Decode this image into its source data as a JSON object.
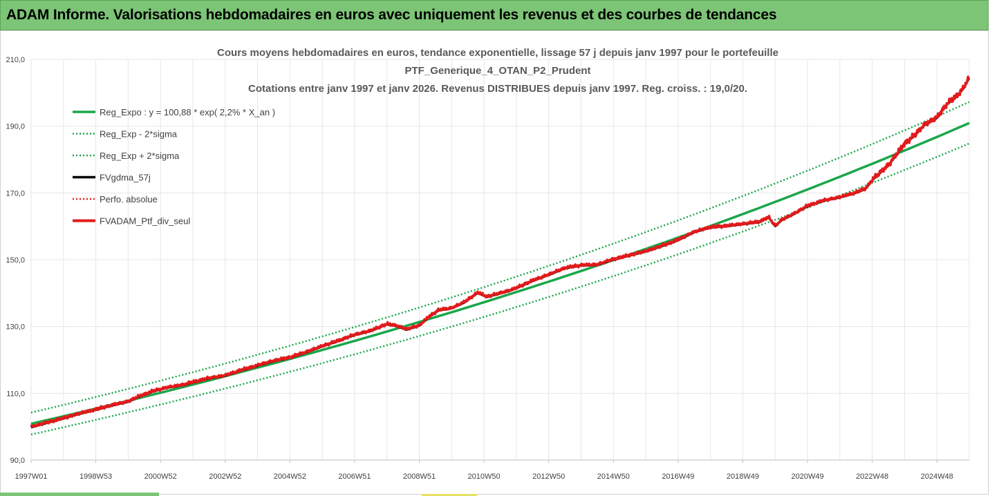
{
  "banner": {
    "title": "ADAM Informe. Valorisations hebdomadaires en euros avec uniquement les revenus et des courbes de tendances"
  },
  "colors": {
    "banner": "#7cc576",
    "trend": "#1aa64a",
    "fvgdma": "#000000",
    "perf": "#e31a1c",
    "adam": "#e31a1c",
    "grid": "#e6e6e6"
  },
  "chart_data": {
    "type": "line",
    "title_lines": [
      "Cours moyens hebdomadaires  en euros, tendance exponentielle, lissage 57 j depuis janv 1997 pour le portefeuille",
      "PTF_Generique_4_OTAN_P2_Prudent",
      "Cotations entre janv 1997 et janv 2026. Revenus DISTRIBUES depuis janv 1997. Reg. croiss. : 19,0/20."
    ],
    "x_range": [
      1997.0,
      2026.0
    ],
    "ylim": [
      90,
      210
    ],
    "y_ticks": [
      {
        "value": 90,
        "label": "90,0"
      },
      {
        "value": 110,
        "label": "110,0"
      },
      {
        "value": 130,
        "label": "130,0"
      },
      {
        "value": 150,
        "label": "150,0"
      },
      {
        "value": 170,
        "label": "170,0"
      },
      {
        "value": 190,
        "label": "190,0"
      },
      {
        "value": 210,
        "label": "210,0"
      }
    ],
    "x_ticks": [
      {
        "t": 1997.0,
        "label": "1997W01"
      },
      {
        "t": 1999.0,
        "label": "1998W53"
      },
      {
        "t": 2001.0,
        "label": "2000W52"
      },
      {
        "t": 2003.0,
        "label": "2002W52"
      },
      {
        "t": 2005.0,
        "label": "2004W52"
      },
      {
        "t": 2007.0,
        "label": "2006W51"
      },
      {
        "t": 2009.0,
        "label": "2008W51"
      },
      {
        "t": 2011.0,
        "label": "2010W50"
      },
      {
        "t": 2013.0,
        "label": "2012W50"
      },
      {
        "t": 2015.0,
        "label": "2014W50"
      },
      {
        "t": 2017.0,
        "label": "2016W49"
      },
      {
        "t": 2019.0,
        "label": "2018W49"
      },
      {
        "t": 2021.0,
        "label": "2020W49"
      },
      {
        "t": 2023.0,
        "label": "2022W48"
      },
      {
        "t": 2025.0,
        "label": "2024W48"
      }
    ],
    "grid": true,
    "legend_position": "top-left",
    "trend": {
      "a": 100.88,
      "rate": 0.022,
      "lower_factor": 0.968,
      "upper_factor": 1.033
    },
    "legend": [
      {
        "label": "Reg_Expo : y = 100,88 * exp( 2,2% *  X_an )",
        "color": "#1aa64a",
        "style": "solid"
      },
      {
        "label": "Reg_Exp - 2*sigma",
        "color": "#1aa64a",
        "style": "dotted"
      },
      {
        "label": "Reg_Exp + 2*sigma",
        "color": "#1aa64a",
        "style": "dotted"
      },
      {
        "label": "FVgdma_57j",
        "color": "#000000",
        "style": "solid"
      },
      {
        "label": "Perfo. absolue",
        "color": "#e31a1c",
        "style": "dotted"
      },
      {
        "label": "FVADAM_Ptf_div_seul",
        "color": "#e31a1c",
        "style": "solid-thick"
      }
    ],
    "series": [
      {
        "name": "FVADAM_Ptf_div_seul",
        "x": [
          1997.0,
          1997.5,
          1998.0,
          1998.5,
          1999.0,
          1999.5,
          2000.0,
          2000.3,
          2000.8,
          2001.2,
          2001.7,
          2002.0,
          2002.5,
          2003.0,
          2003.5,
          2004.0,
          2004.5,
          2005.0,
          2005.5,
          2006.0,
          2006.5,
          2007.0,
          2007.5,
          2008.0,
          2008.3,
          2008.6,
          2009.0,
          2009.3,
          2009.6,
          2010.0,
          2010.4,
          2010.8,
          2011.1,
          2011.4,
          2011.7,
          2012.0,
          2012.5,
          2013.0,
          2013.5,
          2014.0,
          2014.5,
          2015.0,
          2015.5,
          2016.0,
          2016.5,
          2017.0,
          2017.5,
          2018.0,
          2018.5,
          2019.0,
          2019.5,
          2019.8,
          2020.0,
          2020.2,
          2020.5,
          2021.0,
          2021.5,
          2022.0,
          2022.5,
          2022.8,
          2023.0,
          2023.5,
          2024.0,
          2024.3,
          2024.6,
          2025.0,
          2025.3,
          2025.6,
          2025.8,
          2026.0
        ],
        "y": [
          100.0,
          101.3,
          102.6,
          104.0,
          105.2,
          106.5,
          107.6,
          109.0,
          110.8,
          111.8,
          112.6,
          113.4,
          114.6,
          115.4,
          117.0,
          118.4,
          119.8,
          120.8,
          122.4,
          124.2,
          125.8,
          127.6,
          128.8,
          130.8,
          130.3,
          129.2,
          130.4,
          133.0,
          135.0,
          135.6,
          137.4,
          140.2,
          139.0,
          139.8,
          140.6,
          141.6,
          143.8,
          145.6,
          147.6,
          148.4,
          148.6,
          150.2,
          151.4,
          152.6,
          154.2,
          156.0,
          158.4,
          159.8,
          160.2,
          160.8,
          161.4,
          162.8,
          160.2,
          162.0,
          163.4,
          166.2,
          167.8,
          168.8,
          170.2,
          171.4,
          174.0,
          178.4,
          184.8,
          187.2,
          190.4,
          192.6,
          196.6,
          199.0,
          201.2,
          204.6
        ]
      }
    ]
  }
}
